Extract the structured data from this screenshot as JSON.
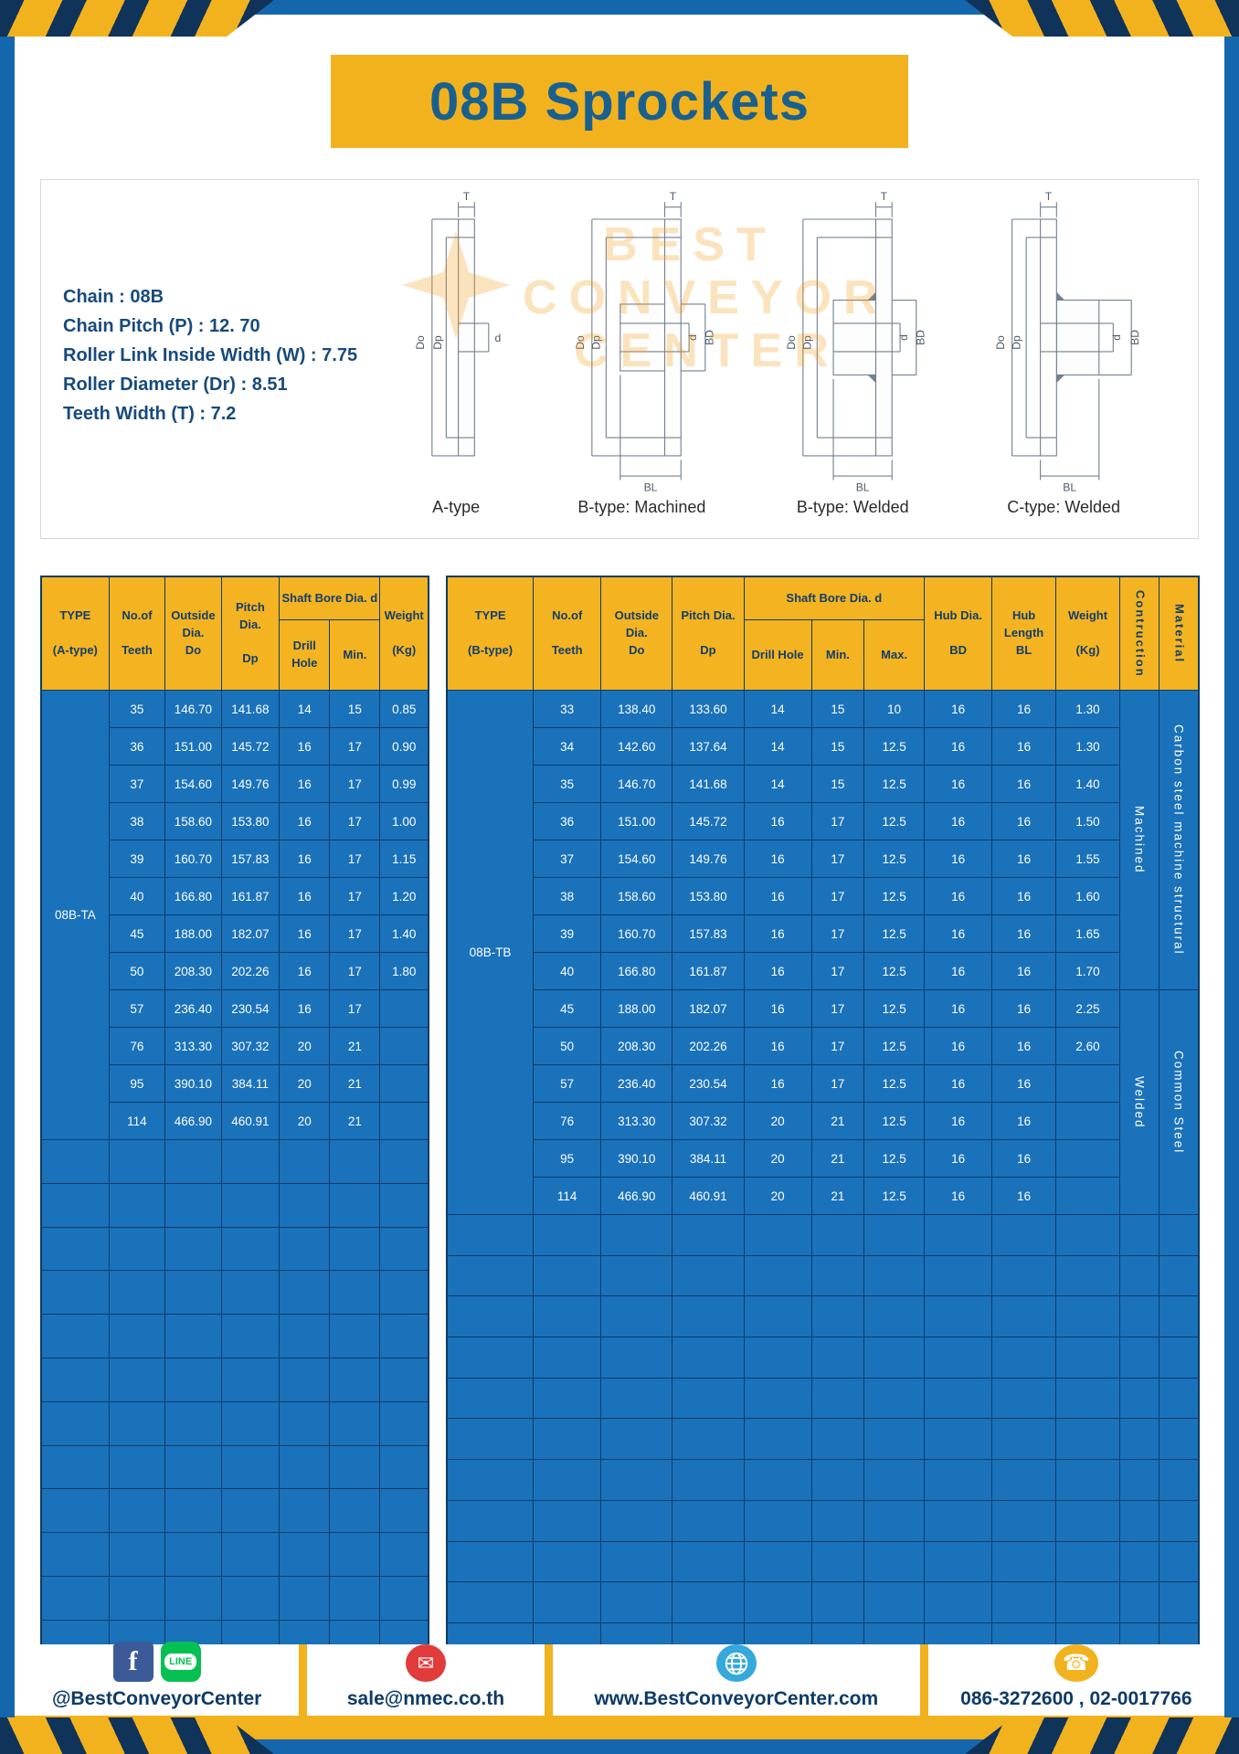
{
  "brand": {
    "yellow": "#F2B21E",
    "frame_blue": "#1567AD",
    "table_blue": "#1A72BA",
    "navy": "#0E3A66",
    "title_blue": "#19608F"
  },
  "page": {
    "title": "08B Sprockets"
  },
  "specs": {
    "lines": [
      "Chain : 08B",
      "Chain Pitch (P) : 12. 70",
      "Roller Link Inside Width (W) : 7.75",
      "Roller Diameter (Dr) : 8.51",
      "Teeth Width (T) : 7.2"
    ]
  },
  "watermark": {
    "lines": [
      "BEST",
      "CONVEYOR",
      "CENTER"
    ]
  },
  "diagrams": {
    "captions": [
      "A-type",
      "B-type: Machined",
      "B-type: Welded",
      "C-type: Welded"
    ],
    "dims": {
      "T": "T",
      "Do": "Do",
      "Dp": "Dp",
      "d": "d",
      "BD": "BD",
      "BL": "BL"
    }
  },
  "tables": {
    "a": {
      "type_label": "08B-TA",
      "headers_main": [
        "TYPE\n\n(A-type)",
        "No.of\n\nTeeth",
        "Outside\nDia.\nDo",
        "Pitch Dia.\n\nDp"
      ],
      "group_header": "Shaft Bore Dia. d",
      "sub_headers": [
        "Drill Hole",
        "Min."
      ],
      "headers_tail": [
        "Weight\n\n(Kg)"
      ],
      "col_widths": [
        "17.5%",
        "14.5%",
        "14.5%",
        "15%",
        "13%",
        "13%",
        "12.5%"
      ],
      "rows": [
        [
          "35",
          "146.70",
          "141.68",
          "14",
          "15",
          "0.85"
        ],
        [
          "36",
          "151.00",
          "145.72",
          "16",
          "17",
          "0.90"
        ],
        [
          "37",
          "154.60",
          "149.76",
          "16",
          "17",
          "0.99"
        ],
        [
          "38",
          "158.60",
          "153.80",
          "16",
          "17",
          "1.00"
        ],
        [
          "39",
          "160.70",
          "157.83",
          "16",
          "17",
          "1.15"
        ],
        [
          "40",
          "166.80",
          "161.87",
          "16",
          "17",
          "1.20"
        ],
        [
          "45",
          "188.00",
          "182.07",
          "16",
          "17",
          "1.40"
        ],
        [
          "50",
          "208.30",
          "202.26",
          "16",
          "17",
          "1.80"
        ],
        [
          "57",
          "236.40",
          "230.54",
          "16",
          "17",
          ""
        ],
        [
          "76",
          "313.30",
          "307.32",
          "20",
          "21",
          ""
        ],
        [
          "95",
          "390.10",
          "384.11",
          "20",
          "21",
          ""
        ],
        [
          "114",
          "466.90",
          "460.91",
          "20",
          "21",
          ""
        ]
      ],
      "empty_rows": 12
    },
    "b": {
      "type_label": "08B-TB",
      "headers_main": [
        "TYPE\n\n(B-type)",
        "No.of\n\nTeeth",
        "Outside\nDia.\nDo",
        "Pitch Dia.\n\nDp"
      ],
      "group_header": "Shaft Bore Dia. d",
      "sub_headers": [
        "Drill Hole",
        "Min.",
        "Max."
      ],
      "headers_tail": [
        "Hub Dia.\n\nBD",
        "Hub\nLength\nBL",
        "Weight\n\n(Kg)"
      ],
      "vertical_headers": [
        "Contruction",
        "Material"
      ],
      "construction_spans": [
        {
          "label": "Machined",
          "rows": 8
        },
        {
          "label": "Welded",
          "rows": 6
        }
      ],
      "material_spans": [
        {
          "label": "Carbon steel machine structural",
          "rows": 8
        },
        {
          "label": "Common Steel",
          "rows": 6
        }
      ],
      "col_widths": [
        "11.5%",
        "9%",
        "9.5%",
        "9.5%",
        "9%",
        "7%",
        "8%",
        "9%",
        "8.5%",
        "8.5%",
        "5.25%",
        "5.25%"
      ],
      "rows": [
        [
          "33",
          "138.40",
          "133.60",
          "14",
          "15",
          "10",
          "16",
          "16",
          "1.30"
        ],
        [
          "34",
          "142.60",
          "137.64",
          "14",
          "15",
          "12.5",
          "16",
          "16",
          "1.30"
        ],
        [
          "35",
          "146.70",
          "141.68",
          "14",
          "15",
          "12.5",
          "16",
          "16",
          "1.40"
        ],
        [
          "36",
          "151.00",
          "145.72",
          "16",
          "17",
          "12.5",
          "16",
          "16",
          "1.50"
        ],
        [
          "37",
          "154.60",
          "149.76",
          "16",
          "17",
          "12.5",
          "16",
          "16",
          "1.55"
        ],
        [
          "38",
          "158.60",
          "153.80",
          "16",
          "17",
          "12.5",
          "16",
          "16",
          "1.60"
        ],
        [
          "39",
          "160.70",
          "157.83",
          "16",
          "17",
          "12.5",
          "16",
          "16",
          "1.65"
        ],
        [
          "40",
          "166.80",
          "161.87",
          "16",
          "17",
          "12.5",
          "16",
          "16",
          "1.70"
        ],
        [
          "45",
          "188.00",
          "182.07",
          "16",
          "17",
          "12.5",
          "16",
          "16",
          "2.25"
        ],
        [
          "50",
          "208.30",
          "202.26",
          "16",
          "17",
          "12.5",
          "16",
          "16",
          "2.60"
        ],
        [
          "57",
          "236.40",
          "230.54",
          "16",
          "17",
          "12.5",
          "16",
          "16",
          ""
        ],
        [
          "76",
          "313.30",
          "307.32",
          "20",
          "21",
          "12.5",
          "16",
          "16",
          ""
        ],
        [
          "95",
          "390.10",
          "384.11",
          "20",
          "21",
          "12.5",
          "16",
          "16",
          ""
        ],
        [
          "114",
          "466.90",
          "460.91",
          "20",
          "21",
          "12.5",
          "16",
          "16",
          ""
        ]
      ],
      "empty_rows": 11
    }
  },
  "footer": {
    "facebook_glyph": "f",
    "line_text": "LINE",
    "email_glyph": "✉",
    "phone_glyph": "☎",
    "sections": [
      {
        "label": "@BestConveyorCenter"
      },
      {
        "label": "sale@nmec.co.th"
      },
      {
        "label": "www.BestConveyorCenter.com"
      },
      {
        "label": "086-3272600 , 02-0017766"
      }
    ]
  }
}
